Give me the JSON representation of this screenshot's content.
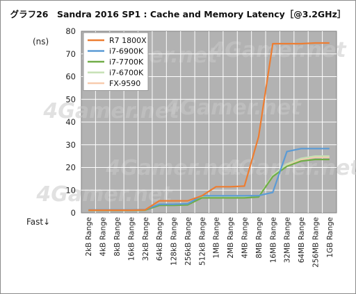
{
  "chart_data": {
    "type": "line",
    "title": "グラフ26　Sandra 2016 SP1 : Cache and Memory Latency［@3.2GHz］",
    "ylabel": "(ns)",
    "xlabel_note": "Fast↓",
    "ylim": [
      0,
      80
    ],
    "yticks": [
      "0",
      "10",
      "20",
      "30",
      "40",
      "50",
      "60",
      "70",
      "80"
    ],
    "grid": true,
    "legend_position": "top-left",
    "watermark": "4Gamer.net",
    "categories": [
      "2kB Range",
      "4kB Range",
      "8kB Range",
      "16kB Range",
      "32kB Range",
      "64kB Range",
      "128kB Range",
      "256kB Range",
      "512kB Range",
      "1MB Range",
      "2MB Range",
      "4MB Range",
      "8MB Range",
      "16MB Range",
      "32MB Range",
      "64MB Range",
      "256MB Range",
      "1GB Range"
    ],
    "series": [
      {
        "name": "R7 1800X",
        "color": "#ed7d31",
        "values": [
          1.2,
          1.2,
          1.2,
          1.2,
          1.3,
          5.3,
          5.3,
          5.3,
          7.5,
          11.5,
          11.5,
          11.8,
          33.5,
          74.5,
          74.5,
          74.5,
          74.8,
          74.8
        ]
      },
      {
        "name": "i7-6900K",
        "color": "#5b9bd5",
        "values": [
          1.3,
          1.3,
          1.3,
          1.3,
          1.4,
          3.8,
          3.8,
          4.0,
          7.5,
          7.5,
          7.5,
          7.5,
          7.6,
          9.0,
          27.0,
          28.3,
          28.3,
          28.3
        ]
      },
      {
        "name": "i7-7700K",
        "color": "#70ad47",
        "values": [
          1.1,
          1.1,
          1.1,
          1.1,
          1.2,
          3.3,
          3.3,
          3.5,
          6.6,
          6.6,
          6.6,
          6.6,
          7.0,
          16.0,
          20.5,
          22.8,
          23.5,
          23.5
        ]
      },
      {
        "name": "i7-6700K",
        "color": "#c5e0b4",
        "values": [
          1.2,
          1.2,
          1.2,
          1.2,
          1.3,
          3.6,
          3.6,
          3.8,
          7.0,
          7.0,
          7.0,
          7.0,
          7.3,
          16.5,
          21.5,
          24.0,
          25.0,
          25.0
        ]
      },
      {
        "name": "FX-9590",
        "color": "#f8cbad",
        "values": [
          1.1,
          1.1,
          1.1,
          1.1,
          1.2,
          3.5,
          3.5,
          3.7,
          6.8,
          6.8,
          6.8,
          6.8,
          7.1,
          16.2,
          21.0,
          23.5,
          24.5,
          24.5
        ]
      }
    ]
  }
}
